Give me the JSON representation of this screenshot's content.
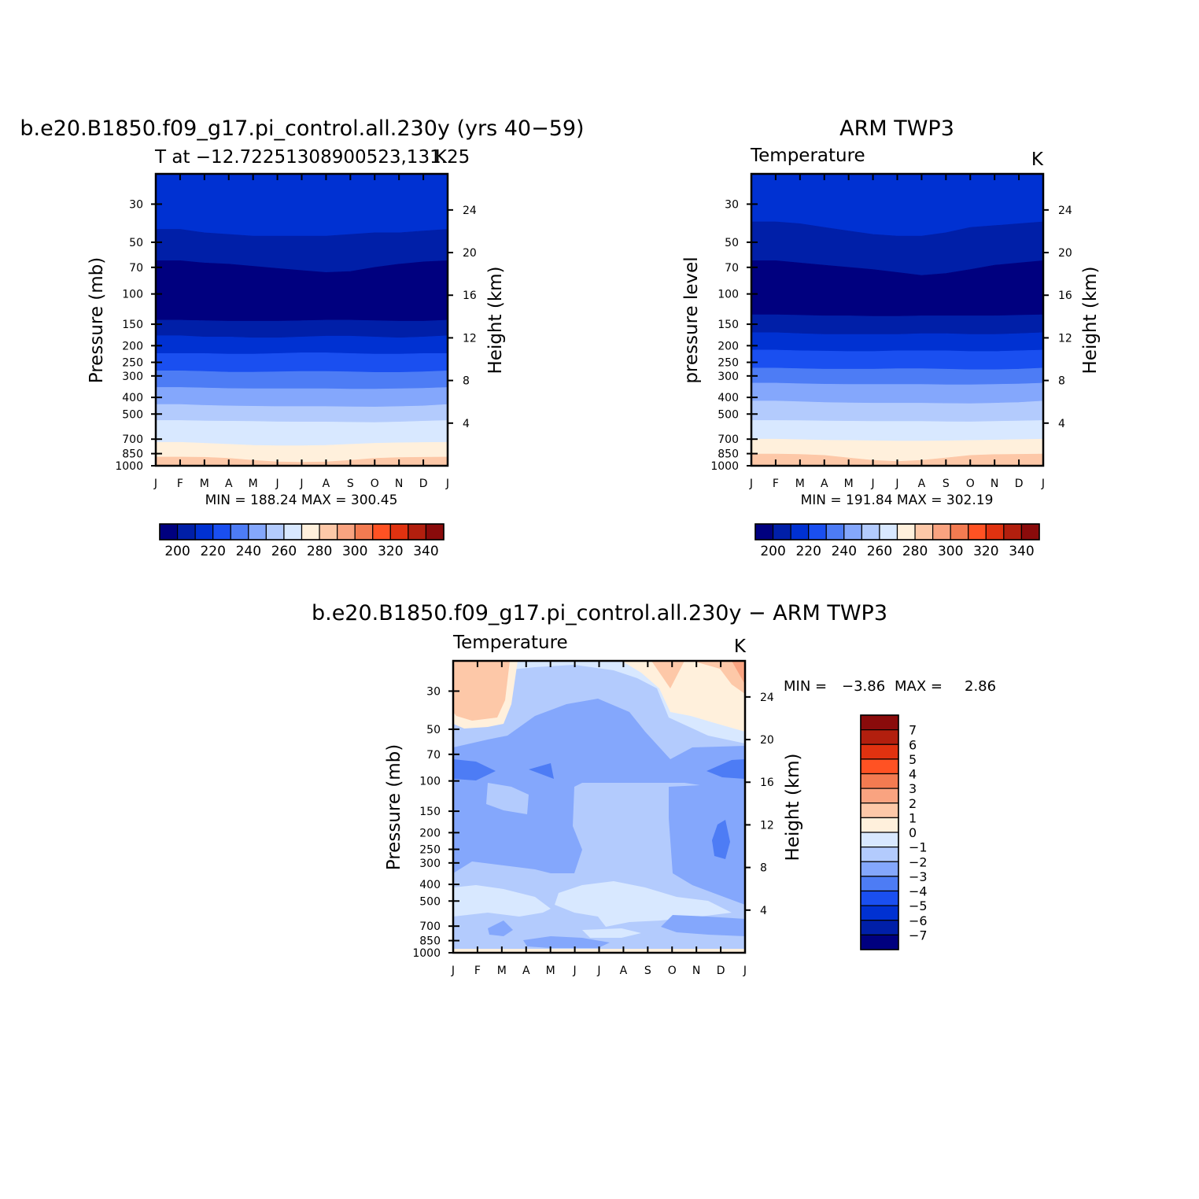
{
  "colors": {
    "temperature_levels": [
      "#00007f",
      "#001fa8",
      "#0031d2",
      "#1a4ff0",
      "#4d7cf5",
      "#84a7fc",
      "#b3cbfd",
      "#d8e8ff",
      "#fff0dc",
      "#fdc8a8",
      "#f9a380",
      "#f37b51",
      "#ff5223",
      "#e03210",
      "#b21f0e",
      "#8a0b0b"
    ],
    "difference_levels": [
      "#00007f",
      "#001fa8",
      "#0031d2",
      "#1a4ff0",
      "#4d7cf5",
      "#84a7fc",
      "#b3cbfd",
      "#d8e8ff",
      "#fff0dc",
      "#fdc8a8",
      "#f9a380",
      "#f37b51",
      "#ff5223",
      "#e03210",
      "#b21f0e",
      "#8a0b0b"
    ]
  },
  "chart_data": [
    {
      "id": "model",
      "type": "heatmap",
      "title": "b.e20.B1850.f09_g17.pi_control.all.230y (yrs 40−59)",
      "subtitle": "T at −12.72251308900523,131.25",
      "units": "K",
      "ylabel": "Pressure (mb)",
      "ylabel_right": "Height (km)",
      "x_ticks": [
        "J",
        "F",
        "M",
        "A",
        "M",
        "J",
        "J",
        "A",
        "S",
        "O",
        "N",
        "D",
        "J"
      ],
      "y_ticks": [
        "30",
        "50",
        "70",
        "100",
        "150",
        "200",
        "250",
        "300",
        "400",
        "500",
        "700",
        "850",
        "1000"
      ],
      "y_ticks_right": [
        "24",
        "20",
        "16",
        "12",
        "8",
        "4"
      ],
      "stats": "MIN = 188.24 MAX = 300.45",
      "colorbar_labels": [
        "200",
        "220",
        "240",
        "260",
        "280",
        "300",
        "320",
        "340"
      ],
      "boundaries_mb": [
        [
          42,
          42,
          44,
          45,
          46,
          46,
          46,
          46,
          45,
          44,
          44,
          43,
          42
        ],
        [
          64,
          64,
          66,
          67,
          69,
          71,
          73,
          75,
          74,
          70,
          67,
          65,
          64
        ],
        [
          142,
          142,
          143,
          144,
          144,
          144,
          143,
          142,
          142,
          143,
          144,
          144,
          142
        ],
        [
          175,
          175,
          178,
          178,
          180,
          180,
          178,
          176,
          176,
          178,
          180,
          178,
          175
        ],
        [
          222,
          222,
          222,
          224,
          224,
          222,
          220,
          220,
          222,
          224,
          224,
          222,
          222
        ],
        [
          280,
          280,
          282,
          285,
          285,
          284,
          282,
          282,
          284,
          286,
          286,
          284,
          280
        ],
        [
          350,
          350,
          352,
          355,
          356,
          356,
          356,
          356,
          358,
          358,
          356,
          354,
          350
        ],
        [
          440,
          440,
          445,
          448,
          450,
          452,
          452,
          452,
          454,
          455,
          452,
          448,
          440
        ],
        [
          545,
          545,
          548,
          550,
          552,
          555,
          556,
          556,
          558,
          560,
          556,
          550,
          545
        ],
        [
          730,
          730,
          740,
          750,
          760,
          765,
          765,
          760,
          750,
          740,
          735,
          732,
          730
        ],
        [
          890,
          890,
          892,
          905,
          930,
          950,
          955,
          950,
          930,
          905,
          895,
          892,
          890
        ]
      ],
      "band_level_index": [
        2,
        1,
        0,
        1,
        2,
        3,
        4,
        5,
        6,
        7,
        8,
        9
      ]
    },
    {
      "id": "obs",
      "type": "heatmap",
      "title": "ARM TWP3",
      "subtitle": "Temperature",
      "units": "K",
      "ylabel": "pressure level",
      "ylabel_right": "Height (km)",
      "x_ticks": [
        "J",
        "F",
        "M",
        "A",
        "M",
        "J",
        "J",
        "A",
        "S",
        "O",
        "N",
        "D",
        "J"
      ],
      "y_ticks": [
        "30",
        "50",
        "70",
        "100",
        "150",
        "200",
        "250",
        "300",
        "400",
        "500",
        "700",
        "850",
        "1000"
      ],
      "y_ticks_right": [
        "24",
        "20",
        "16",
        "12",
        "8",
        "4"
      ],
      "stats": "MIN = 191.84 MAX = 302.19",
      "colorbar_labels": [
        "200",
        "220",
        "240",
        "260",
        "280",
        "300",
        "320",
        "340"
      ],
      "boundaries_mb": [
        [
          38,
          38,
          39,
          41,
          43,
          45,
          46,
          46,
          44,
          41,
          40,
          39,
          38
        ],
        [
          64,
          64,
          66,
          68,
          70,
          72,
          75,
          78,
          76,
          72,
          68,
          66,
          64
        ],
        [
          132,
          132,
          133,
          134,
          134,
          135,
          135,
          134,
          134,
          134,
          134,
          133,
          132
        ],
        [
          168,
          168,
          170,
          172,
          172,
          172,
          172,
          170,
          170,
          172,
          172,
          170,
          168
        ],
        [
          212,
          212,
          214,
          215,
          216,
          216,
          214,
          214,
          214,
          216,
          216,
          214,
          212
        ],
        [
          270,
          270,
          272,
          274,
          274,
          274,
          272,
          272,
          274,
          276,
          276,
          274,
          270
        ],
        [
          330,
          330,
          333,
          335,
          336,
          336,
          336,
          336,
          338,
          338,
          336,
          334,
          330
        ],
        [
          420,
          420,
          424,
          428,
          430,
          432,
          432,
          432,
          434,
          435,
          432,
          428,
          420
        ],
        [
          545,
          545,
          546,
          548,
          550,
          552,
          552,
          552,
          554,
          555,
          552,
          548,
          545
        ],
        [
          700,
          700,
          705,
          710,
          712,
          715,
          718,
          718,
          716,
          712,
          708,
          704,
          700
        ],
        [
          855,
          855,
          858,
          870,
          900,
          930,
          945,
          930,
          900,
          870,
          860,
          857,
          855
        ]
      ],
      "band_level_index": [
        2,
        1,
        0,
        1,
        2,
        3,
        4,
        5,
        6,
        7,
        8,
        9
      ]
    },
    {
      "id": "diff",
      "type": "heatmap",
      "title": "b.e20.B1850.f09_g17.pi_control.all.230y − ARM TWP3",
      "subtitle": "Temperature",
      "units": "K",
      "ylabel": "Pressure (mb)",
      "ylabel_right": "Height (km)",
      "x_ticks": [
        "J",
        "F",
        "M",
        "A",
        "M",
        "J",
        "J",
        "A",
        "S",
        "O",
        "N",
        "D",
        "J"
      ],
      "y_ticks": [
        "30",
        "50",
        "70",
        "100",
        "150",
        "200",
        "250",
        "300",
        "400",
        "500",
        "700",
        "850",
        "1000"
      ],
      "y_ticks_right": [
        "24",
        "20",
        "16",
        "12",
        "8",
        "4"
      ],
      "stats_min_label": "MIN =",
      "stats_min": "−3.86",
      "stats_max_label": "MAX =",
      "stats_max": "2.86",
      "colorbar_labels": [
        "7",
        "6",
        "5",
        "4",
        "3",
        "2",
        "1",
        "0",
        "−1",
        "−2",
        "−3",
        "−4",
        "−5",
        "−6",
        "−7"
      ]
    }
  ]
}
